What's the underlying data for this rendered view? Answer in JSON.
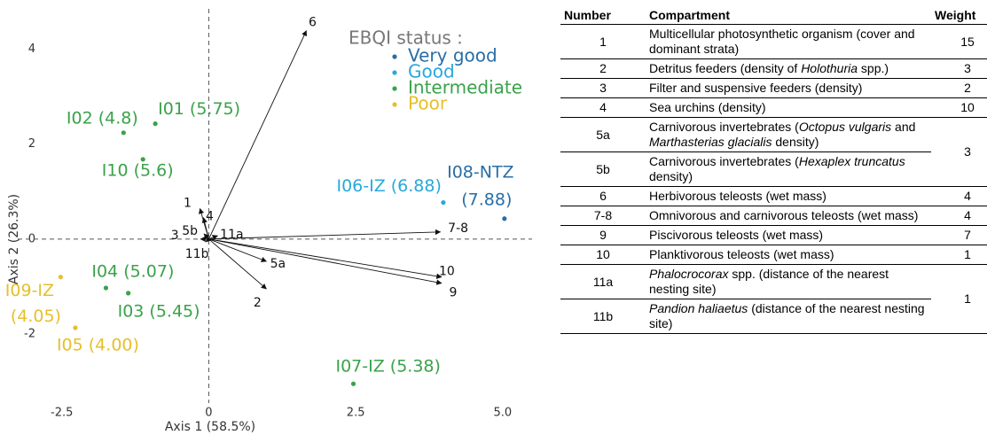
{
  "chart_data": {
    "type": "scatter",
    "x_label": "Axis 1 (58.5%)",
    "y_label": "Axis 2 (26.3%)",
    "xlim": [
      -3.25,
      5.5
    ],
    "ylim": [
      -3.55,
      4.85
    ],
    "xticks": [
      -2.5,
      0,
      2.5,
      {
        "value": 5,
        "label": "5.0"
      }
    ],
    "yticks": [
      -2,
      0,
      2,
      4
    ],
    "legend_title": "EBQI status :",
    "series": [
      {
        "name": "Very good",
        "color": "#2a6ea6",
        "labels": [
          [
            "I08-NTZ",
            "(7.88)"
          ]
        ],
        "x": [
          5.03
        ],
        "values": [
          0.43
        ]
      },
      {
        "name": "Good",
        "color": "#29a8dc",
        "labels": [
          [
            "I06-IZ (6.88)"
          ]
        ],
        "x": [
          3.99
        ],
        "values": [
          0.77
        ]
      },
      {
        "name": "Intermediate",
        "color": "#3aa24a",
        "labels": [
          [
            "I02 (4.8)"
          ],
          [
            "I01 (5.75)"
          ],
          [
            "I10 (5.6)"
          ],
          [
            "I04 (5.07)"
          ],
          [
            "I03 (5.45)"
          ],
          [
            "I07-IZ (5.38)"
          ]
        ],
        "x": [
          -1.45,
          -0.91,
          -1.12,
          -1.75,
          -1.37,
          2.46
        ],
        "values": [
          2.24,
          2.43,
          1.68,
          -1.03,
          -1.14,
          -3.05
        ]
      },
      {
        "name": "Poor",
        "color": "#e6bf2a",
        "labels": [
          [
            "I09-IZ",
            "(4.05)"
          ],
          [
            "I05 (4.00)"
          ]
        ],
        "x": [
          -2.52,
          -2.27
        ],
        "values": [
          -0.8,
          -1.87
        ]
      }
    ],
    "vectors": {
      "labels": [
        "6",
        "1",
        "4",
        "5b",
        "3",
        "11a",
        "11b",
        "7-8",
        "10",
        "9",
        "5a",
        "2"
      ],
      "x": [
        1.66,
        -0.15,
        -0.09,
        -0.08,
        -0.14,
        0.15,
        -0.05,
        3.94,
        3.96,
        3.96,
        0.98,
        0.98
      ],
      "y": [
        4.39,
        0.64,
        0.45,
        0.11,
        0.0,
        0.07,
        -0.06,
        0.15,
        -0.8,
        -0.93,
        -0.47,
        -1.05
      ]
    }
  },
  "table": {
    "columns": [
      "Number",
      "Compartment",
      "Weight"
    ],
    "rows": [
      {
        "number": "1",
        "compartment": [
          "Multicellular photosynthetic organism (cover and dominant strata)"
        ],
        "weight": 15
      },
      {
        "number": "2",
        "compartment": [
          "Detritus feeders (density of ",
          "Holothuria",
          " spp.)"
        ],
        "weight": 3
      },
      {
        "number": "3",
        "compartment": [
          "Filter and suspensive feeders (density)"
        ],
        "weight": 2
      },
      {
        "number": "4",
        "compartment": [
          "Sea urchins (density)"
        ],
        "weight": 10
      },
      {
        "number": "5a",
        "compartment": [
          "Carnivorous invertebrates (",
          "Octopus vulgaris",
          " and ",
          "Marthasterias glacialis",
          " density)"
        ],
        "weight": 3
      },
      {
        "number": "5b",
        "compartment": [
          "Carnivorous invertebrates (",
          "Hexaplex truncatus",
          " density)"
        ]
      },
      {
        "number": "6",
        "compartment": [
          "Herbivorous teleosts (wet mass)"
        ],
        "weight": 4
      },
      {
        "number": "7-8",
        "compartment": [
          "Omnivorous and carnivorous teleosts (wet mass)"
        ],
        "weight": 4
      },
      {
        "number": "9",
        "compartment": [
          "Piscivorous teleosts (wet mass)"
        ],
        "weight": 7
      },
      {
        "number": "10",
        "compartment": [
          "Planktivorous teleosts (wet mass)"
        ],
        "weight": 1
      },
      {
        "number": "11a",
        "compartment": [
          "",
          "Phalocrocorax",
          " spp. (distance of the nearest nesting site)"
        ],
        "weight": 1
      },
      {
        "number": "11b",
        "compartment": [
          "",
          "Pandion haliaetus",
          " (distance of the nearest nesting site)"
        ]
      }
    ]
  }
}
